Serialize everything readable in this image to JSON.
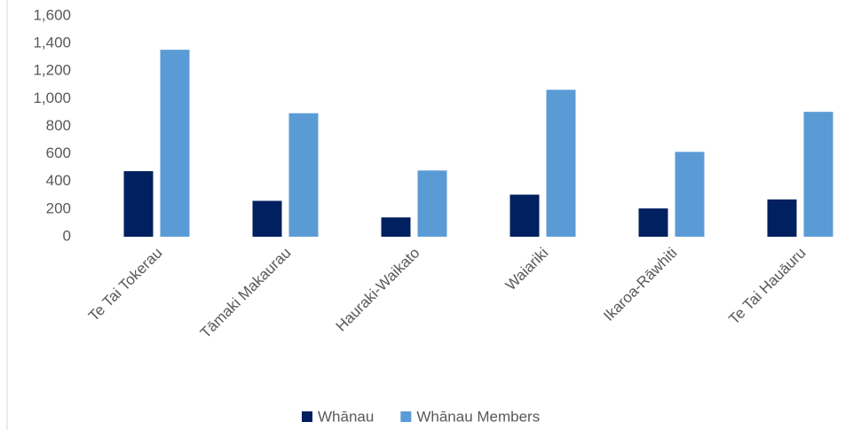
{
  "chart_data": {
    "type": "bar",
    "categories": [
      "Te Tai Tokerau",
      "Tāmaki Makaurau",
      "Hauraki-Waikato",
      "Waiariki",
      "Ikaroa-Rāwhiti",
      "Te Tai Hauāuru"
    ],
    "series": [
      {
        "name": "Whānau",
        "color": "#002060",
        "values": [
          475,
          260,
          140,
          305,
          205,
          270
        ]
      },
      {
        "name": "Whānau Members",
        "color": "#5b9bd5",
        "values": [
          1355,
          895,
          480,
          1065,
          615,
          905
        ]
      }
    ],
    "ylim": [
      0,
      1600
    ],
    "yticks": [
      0,
      {
        "value": 200,
        "label": "200"
      },
      400,
      600,
      800,
      {
        "value": 1000,
        "label": "1,000"
      },
      {
        "value": 1200,
        "label": "1,200"
      },
      {
        "value": 1400,
        "label": "1,400"
      },
      {
        "value": 1600,
        "label": "1,600"
      }
    ],
    "grid": false,
    "legend": "bottom"
  }
}
